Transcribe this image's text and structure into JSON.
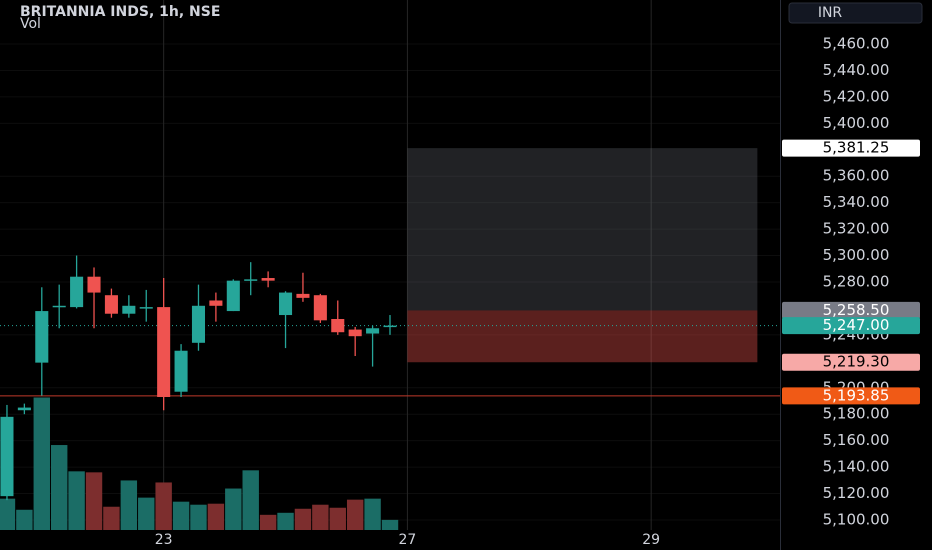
{
  "chart_data": {
    "type": "candlestick",
    "title": "BRITANNIA INDS, 1h, NSE",
    "subtitle": "Vol",
    "currency": "INR",
    "x": [
      0,
      1,
      2,
      3,
      4,
      5,
      6,
      7,
      8,
      9,
      10,
      11,
      12,
      13,
      14,
      15,
      16,
      17,
      18,
      19,
      20,
      21,
      22
    ],
    "open": [
      5118,
      5183,
      5219,
      5261,
      5261,
      5284,
      5270,
      5256,
      5260,
      5261,
      5197,
      5234,
      5266,
      5258,
      5281,
      5283,
      5255,
      5271,
      5270,
      5252,
      5244,
      5241,
      5246
    ],
    "high": [
      5187,
      5188,
      5276,
      5278,
      5300,
      5291,
      5275,
      5270,
      5274,
      5283,
      5233,
      5278,
      5272,
      5282,
      5295,
      5288,
      5273,
      5287,
      5271,
      5266,
      5246,
      5247,
      5255
    ],
    "low": [
      5115,
      5180,
      5194,
      5245,
      5260,
      5245,
      5253,
      5253,
      5250,
      5183,
      5193,
      5228,
      5250,
      5258,
      5270,
      5276,
      5230,
      5265,
      5249,
      5240,
      5224,
      5216,
      5240
    ],
    "close": [
      5178,
      5185,
      5258,
      5262,
      5284,
      5272,
      5256,
      5262,
      5261,
      5193,
      5228,
      5262,
      5262,
      5281,
      5282,
      5281,
      5272,
      5268,
      5251,
      5242,
      5239,
      5245,
      5247
    ],
    "volume": [
      31,
      20,
      131,
      84,
      58,
      57,
      23,
      49,
      32,
      47,
      28,
      25,
      26,
      41,
      59,
      15,
      17,
      21,
      25,
      22,
      30,
      31,
      10
    ],
    "up_color": "#26a69a",
    "down_color": "#ef5350",
    "volume_up_color": "#1b6d66",
    "volume_down_color": "#7d2e2e",
    "xlim": [
      -0.4,
      44.4
    ],
    "xticks": [
      {
        "value": 9,
        "label": "23"
      },
      {
        "value": 23,
        "label": "27"
      },
      {
        "value": 37,
        "label": "29"
      }
    ],
    "ylim": [
      5092.4,
      5493.3
    ],
    "yticks": [
      {
        "value": 5100,
        "label": "5,100.00"
      },
      {
        "value": 5120,
        "label": "5,120.00"
      },
      {
        "value": 5140,
        "label": "5,140.00"
      },
      {
        "value": 5160,
        "label": "5,160.00"
      },
      {
        "value": 5180,
        "label": "5,180.00"
      },
      {
        "value": 5200,
        "label": "5,200.00"
      },
      {
        "value": 5240,
        "label": "5,240.00"
      },
      {
        "value": 5280,
        "label": "5,280.00"
      },
      {
        "value": 5300,
        "label": "5,300.00"
      },
      {
        "value": 5320,
        "label": "5,320.00"
      },
      {
        "value": 5340,
        "label": "5,340.00"
      },
      {
        "value": 5360,
        "label": "5,360.00"
      },
      {
        "value": 5400,
        "label": "5,400.00"
      },
      {
        "value": 5420,
        "label": "5,420.00"
      },
      {
        "value": 5440,
        "label": "5,440.00"
      },
      {
        "value": 5460,
        "label": "5,460.00"
      }
    ],
    "position": {
      "target": 5381.25,
      "entry": 5258.5,
      "stop": 5219.3,
      "x": [
        23,
        43.1
      ]
    },
    "horizontal_line": 5193.85,
    "current_price": 5247,
    "price_labels": [
      {
        "value": 5381.25,
        "label": "5,381.25",
        "color": "#ffffff",
        "text_color": "#000000"
      },
      {
        "value": 5258.5,
        "label": "5,258.50",
        "color": "#787b86",
        "text_color": "#ffffff"
      },
      {
        "value": 5247,
        "label": "5,247.00",
        "color": "#26a69a",
        "text_color": "#ffffff"
      },
      {
        "value": 5219.3,
        "label": "5,219.30",
        "color": "#f7a9a7",
        "text_color": "#000000"
      },
      {
        "value": 5193.85,
        "label": "5,193.85",
        "color": "#f05a16",
        "text_color": "#ffffff"
      }
    ]
  }
}
